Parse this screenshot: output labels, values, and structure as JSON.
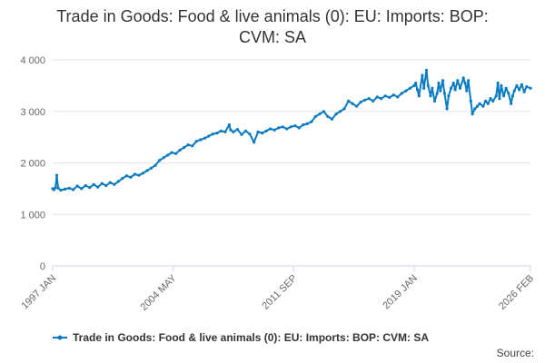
{
  "colors": {
    "series": "#0b7bc1",
    "grid": "#e6e6e6",
    "axis": "#ccd6eb"
  },
  "chart_data": {
    "type": "line",
    "title_line1": "Trade in Goods: Food & live animals (0): EU: Imports: BOP:",
    "title_line2": "CVM: SA",
    "ylim": [
      0,
      4000
    ],
    "y_ticks": [
      0,
      1000,
      2000,
      3000,
      4000
    ],
    "y_tick_labels": [
      "0",
      "1 000",
      "2 000",
      "3 000",
      "4 000"
    ],
    "x_range": [
      1997.0,
      2026.083
    ],
    "x_ticks": [
      {
        "x": 1997.0,
        "label": "1997 JAN"
      },
      {
        "x": 2004.333,
        "label": "2004 MAY"
      },
      {
        "x": 2011.667,
        "label": "2011 SEP"
      },
      {
        "x": 2019.0,
        "label": "2019 JAN"
      },
      {
        "x": 2026.083,
        "label": "2026 FEB"
      }
    ],
    "grid": true,
    "legend_position": "bottom",
    "series": [
      {
        "name": "Trade in Goods: Food & live animals (0): EU: Imports: BOP: CVM: SA",
        "marker": "circle",
        "points": [
          [
            1997.0,
            1500
          ],
          [
            1997.08,
            1480
          ],
          [
            1997.17,
            1520
          ],
          [
            1997.25,
            1760
          ],
          [
            1997.33,
            1510
          ],
          [
            1997.5,
            1470
          ],
          [
            1997.75,
            1490
          ],
          [
            1998.0,
            1510
          ],
          [
            1998.25,
            1480
          ],
          [
            1998.5,
            1550
          ],
          [
            1998.75,
            1500
          ],
          [
            1999.0,
            1560
          ],
          [
            1999.25,
            1520
          ],
          [
            1999.5,
            1580
          ],
          [
            1999.75,
            1530
          ],
          [
            2000.0,
            1600
          ],
          [
            2000.25,
            1560
          ],
          [
            2000.5,
            1620
          ],
          [
            2000.75,
            1580
          ],
          [
            2001.0,
            1640
          ],
          [
            2001.25,
            1700
          ],
          [
            2001.5,
            1750
          ],
          [
            2001.75,
            1720
          ],
          [
            2002.0,
            1780
          ],
          [
            2002.25,
            1760
          ],
          [
            2002.5,
            1800
          ],
          [
            2002.75,
            1850
          ],
          [
            2003.0,
            1900
          ],
          [
            2003.25,
            1950
          ],
          [
            2003.5,
            2050
          ],
          [
            2003.75,
            2100
          ],
          [
            2004.0,
            2150
          ],
          [
            2004.25,
            2200
          ],
          [
            2004.5,
            2180
          ],
          [
            2004.75,
            2250
          ],
          [
            2005.0,
            2300
          ],
          [
            2005.25,
            2350
          ],
          [
            2005.5,
            2330
          ],
          [
            2005.75,
            2420
          ],
          [
            2006.0,
            2450
          ],
          [
            2006.25,
            2480
          ],
          [
            2006.5,
            2520
          ],
          [
            2006.75,
            2560
          ],
          [
            2007.0,
            2580
          ],
          [
            2007.25,
            2620
          ],
          [
            2007.5,
            2600
          ],
          [
            2007.75,
            2740
          ],
          [
            2007.83,
            2640
          ],
          [
            2008.0,
            2600
          ],
          [
            2008.25,
            2650
          ],
          [
            2008.5,
            2550
          ],
          [
            2008.75,
            2620
          ],
          [
            2009.0,
            2560
          ],
          [
            2009.25,
            2400
          ],
          [
            2009.5,
            2600
          ],
          [
            2009.75,
            2580
          ],
          [
            2010.0,
            2620
          ],
          [
            2010.25,
            2660
          ],
          [
            2010.5,
            2640
          ],
          [
            2010.75,
            2680
          ],
          [
            2011.0,
            2700
          ],
          [
            2011.25,
            2660
          ],
          [
            2011.5,
            2700
          ],
          [
            2011.75,
            2720
          ],
          [
            2012.0,
            2680
          ],
          [
            2012.25,
            2740
          ],
          [
            2012.5,
            2760
          ],
          [
            2012.75,
            2800
          ],
          [
            2013.0,
            2900
          ],
          [
            2013.25,
            2950
          ],
          [
            2013.5,
            3000
          ],
          [
            2013.75,
            2900
          ],
          [
            2014.0,
            2850
          ],
          [
            2014.25,
            2950
          ],
          [
            2014.5,
            3000
          ],
          [
            2014.75,
            3050
          ],
          [
            2015.0,
            3200
          ],
          [
            2015.25,
            3150
          ],
          [
            2015.5,
            3100
          ],
          [
            2015.75,
            3180
          ],
          [
            2016.0,
            3220
          ],
          [
            2016.25,
            3250
          ],
          [
            2016.5,
            3200
          ],
          [
            2016.75,
            3280
          ],
          [
            2017.0,
            3250
          ],
          [
            2017.25,
            3300
          ],
          [
            2017.5,
            3270
          ],
          [
            2017.75,
            3320
          ],
          [
            2018.0,
            3280
          ],
          [
            2018.25,
            3350
          ],
          [
            2018.5,
            3400
          ],
          [
            2018.75,
            3450
          ],
          [
            2019.0,
            3500
          ],
          [
            2019.1,
            3550
          ],
          [
            2019.2,
            3420
          ],
          [
            2019.3,
            3300
          ],
          [
            2019.5,
            3700
          ],
          [
            2019.6,
            3450
          ],
          [
            2019.75,
            3800
          ],
          [
            2019.85,
            3500
          ],
          [
            2020.0,
            3300
          ],
          [
            2020.1,
            3450
          ],
          [
            2020.25,
            3200
          ],
          [
            2020.4,
            3350
          ],
          [
            2020.5,
            3550
          ],
          [
            2020.6,
            3400
          ],
          [
            2020.75,
            3600
          ],
          [
            2020.85,
            3350
          ],
          [
            2021.0,
            3050
          ],
          [
            2021.1,
            3300
          ],
          [
            2021.25,
            3450
          ],
          [
            2021.4,
            3550
          ],
          [
            2021.5,
            3420
          ],
          [
            2021.65,
            3600
          ],
          [
            2021.8,
            3450
          ],
          [
            2022.0,
            3650
          ],
          [
            2022.1,
            3550
          ],
          [
            2022.2,
            3400
          ],
          [
            2022.3,
            3600
          ],
          [
            2022.45,
            3200
          ],
          [
            2022.55,
            2950
          ],
          [
            2022.7,
            3050
          ],
          [
            2022.85,
            3100
          ],
          [
            2023.0,
            3150
          ],
          [
            2023.2,
            3100
          ],
          [
            2023.35,
            3200
          ],
          [
            2023.5,
            3150
          ],
          [
            2023.65,
            3250
          ],
          [
            2023.8,
            3200
          ],
          [
            2024.0,
            3300
          ],
          [
            2024.1,
            3550
          ],
          [
            2024.2,
            3250
          ],
          [
            2024.3,
            3500
          ],
          [
            2024.45,
            3300
          ],
          [
            2024.6,
            3450
          ],
          [
            2024.75,
            3350
          ],
          [
            2024.9,
            3150
          ],
          [
            2025.0,
            3300
          ],
          [
            2025.1,
            3400
          ],
          [
            2025.25,
            3500
          ],
          [
            2025.4,
            3420
          ],
          [
            2025.55,
            3520
          ],
          [
            2025.7,
            3380
          ],
          [
            2025.85,
            3480
          ],
          [
            2026.083,
            3450
          ]
        ]
      }
    ],
    "source_label": "Source:"
  }
}
